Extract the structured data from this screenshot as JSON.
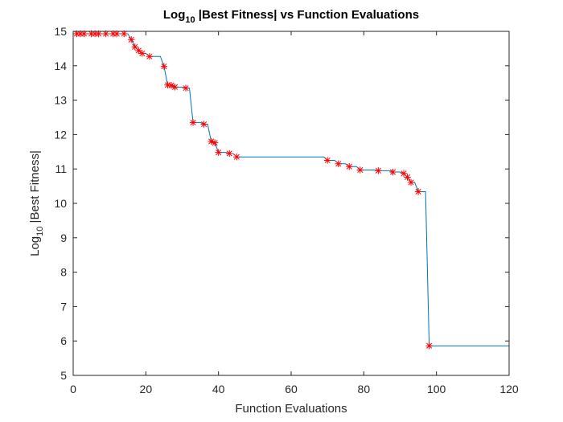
{
  "colors": {
    "line": "#0072bd",
    "marker": "#ff0000",
    "axis": "#262626",
    "background": "#ffffff"
  },
  "chart_data": {
    "type": "line",
    "title": {
      "prefix": "Log",
      "subscript": "10",
      "suffix": " |Best Fitness| vs Function Evaluations"
    },
    "xlabel": "Function Evaluations",
    "ylabel": {
      "prefix": "Log",
      "subscript": "10",
      "suffix": " |Best Fitness|"
    },
    "xlim": [
      0,
      120
    ],
    "ylim": [
      5,
      15
    ],
    "xticks": [
      0,
      20,
      40,
      60,
      80,
      100,
      120
    ],
    "yticks": [
      5,
      6,
      7,
      8,
      9,
      10,
      11,
      12,
      13,
      14,
      15
    ],
    "grid": false,
    "legend": "none",
    "series": [
      {
        "style": "stairs",
        "points": [
          [
            1,
            14.93
          ],
          [
            2,
            14.93
          ],
          [
            3,
            14.93
          ],
          [
            5,
            14.93
          ],
          [
            6,
            14.93
          ],
          [
            7,
            14.93
          ],
          [
            9,
            14.93
          ],
          [
            11,
            14.93
          ],
          [
            12,
            14.93
          ],
          [
            14,
            14.93
          ],
          [
            16,
            14.76
          ],
          [
            17,
            14.55
          ],
          [
            18,
            14.44
          ],
          [
            19,
            14.36
          ],
          [
            21,
            14.27
          ],
          [
            25,
            13.98
          ],
          [
            26,
            13.44
          ],
          [
            27,
            13.43
          ],
          [
            28,
            13.38
          ],
          [
            31,
            13.35
          ],
          [
            33,
            12.35
          ],
          [
            36,
            12.3
          ],
          [
            38,
            11.8
          ],
          [
            39,
            11.76
          ],
          [
            40,
            11.48
          ],
          [
            43,
            11.45
          ],
          [
            45,
            11.35
          ],
          [
            70,
            11.25
          ],
          [
            73,
            11.15
          ],
          [
            76,
            11.07
          ],
          [
            79,
            10.97
          ],
          [
            84,
            10.95
          ],
          [
            88,
            10.91
          ],
          [
            91,
            10.87
          ],
          [
            92,
            10.76
          ],
          [
            93,
            10.61
          ],
          [
            95,
            10.34
          ],
          [
            98,
            5.86
          ],
          [
            120,
            5.86
          ]
        ],
        "markers": [
          [
            1,
            14.93
          ],
          [
            2,
            14.93
          ],
          [
            3,
            14.93
          ],
          [
            5,
            14.93
          ],
          [
            6,
            14.93
          ],
          [
            7,
            14.93
          ],
          [
            9,
            14.93
          ],
          [
            11,
            14.93
          ],
          [
            12,
            14.93
          ],
          [
            14,
            14.93
          ],
          [
            16,
            14.76
          ],
          [
            17,
            14.55
          ],
          [
            18,
            14.44
          ],
          [
            19,
            14.36
          ],
          [
            21,
            14.27
          ],
          [
            25,
            13.98
          ],
          [
            26,
            13.44
          ],
          [
            27,
            13.43
          ],
          [
            28,
            13.38
          ],
          [
            31,
            13.35
          ],
          [
            33,
            12.35
          ],
          [
            36,
            12.3
          ],
          [
            38,
            11.8
          ],
          [
            39,
            11.76
          ],
          [
            40,
            11.48
          ],
          [
            43,
            11.45
          ],
          [
            45,
            11.35
          ],
          [
            70,
            11.25
          ],
          [
            73,
            11.15
          ],
          [
            76,
            11.07
          ],
          [
            79,
            10.97
          ],
          [
            84,
            10.95
          ],
          [
            88,
            10.91
          ],
          [
            91,
            10.87
          ],
          [
            92,
            10.76
          ],
          [
            93,
            10.61
          ],
          [
            95,
            10.34
          ],
          [
            98,
            5.86
          ]
        ]
      }
    ]
  }
}
